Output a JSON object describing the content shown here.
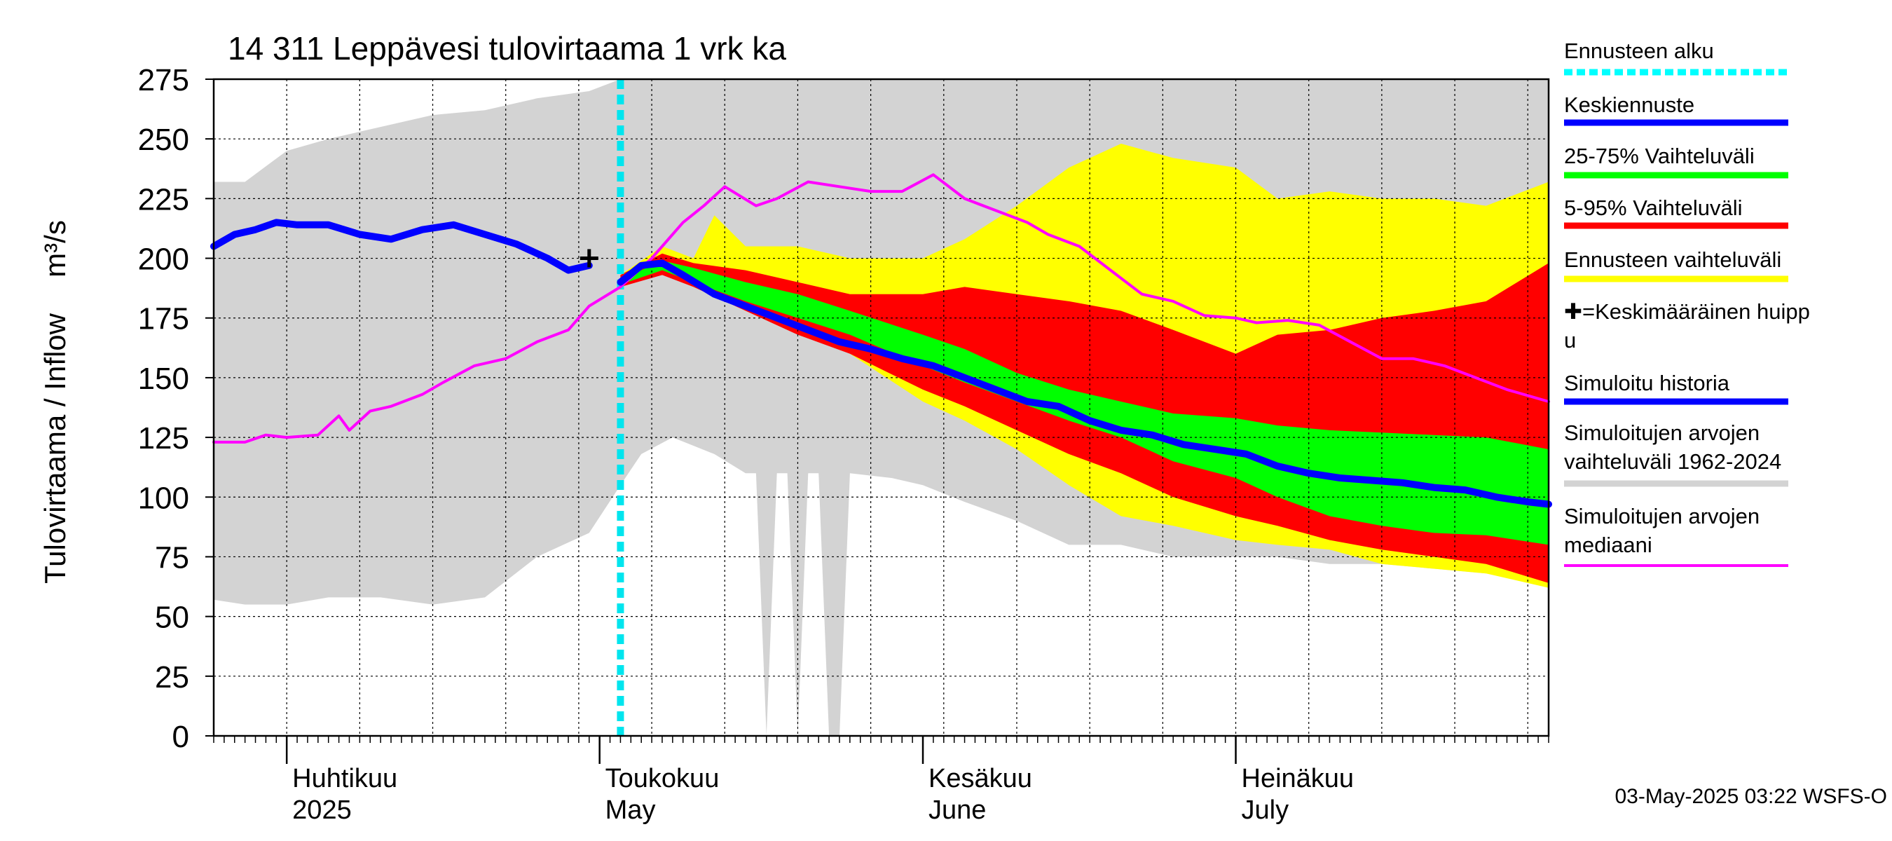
{
  "chart_data": {
    "type": "area",
    "title": "14 311 Leppävesi tulovirtaama 1 vrk ka",
    "ylabel_left": "Tulovirtaama / Inflow",
    "ylabel_right": "m³/s",
    "ylim": [
      0,
      275
    ],
    "yticks": [
      0,
      25,
      50,
      75,
      100,
      125,
      150,
      175,
      200,
      225,
      250,
      275
    ],
    "xlim": [
      "2025-03-25",
      "2025-07-31"
    ],
    "grid": true,
    "legend_position": "right",
    "forecast_start": "2025-05-03",
    "month_labels": [
      {
        "date": "2025-04-01",
        "fi": "Huhtikuu",
        "en": "2025"
      },
      {
        "date": "2025-05-01",
        "fi": "Toukokuu",
        "en": "May"
      },
      {
        "date": "2025-06-01",
        "fi": "Kesäkuu",
        "en": "June"
      },
      {
        "date": "2025-07-01",
        "fi": "Heinäkuu",
        "en": "July"
      }
    ],
    "mean_peak": {
      "date": "2025-04-30",
      "value": 200
    },
    "series": [
      {
        "name": "Simuloitujen arvojen vaihteluväli 1962-2024",
        "kind": "band",
        "color": "#d3d3d3",
        "x": [
          "2025-03-25",
          "2025-03-28",
          "2025-04-01",
          "2025-04-05",
          "2025-04-10",
          "2025-04-15",
          "2025-04-20",
          "2025-04-25",
          "2025-04-30",
          "2025-05-03",
          "2025-05-05",
          "2025-05-08",
          "2025-05-12",
          "2025-05-15",
          "2025-05-16",
          "2025-05-17",
          "2025-05-18",
          "2025-05-19",
          "2025-05-20",
          "2025-05-21",
          "2025-05-22",
          "2025-05-23",
          "2025-05-24",
          "2025-05-25",
          "2025-05-29",
          "2025-06-01",
          "2025-06-05",
          "2025-06-10",
          "2025-06-15",
          "2025-06-20",
          "2025-06-25",
          "2025-07-01",
          "2025-07-05",
          "2025-07-10",
          "2025-07-15",
          "2025-07-20",
          "2025-07-25",
          "2025-07-31"
        ],
        "high": [
          232,
          232,
          245,
          250,
          255,
          260,
          262,
          267,
          270,
          275,
          275,
          275,
          275,
          275,
          275,
          275,
          275,
          275,
          275,
          275,
          275,
          275,
          275,
          275,
          275,
          275,
          275,
          275,
          275,
          275,
          275,
          275,
          275,
          275,
          275,
          275,
          275,
          275
        ],
        "low": [
          57,
          55,
          55,
          58,
          58,
          55,
          58,
          75,
          85,
          105,
          118,
          125,
          118,
          110,
          110,
          0,
          110,
          110,
          0,
          110,
          110,
          0,
          0,
          110,
          108,
          105,
          98,
          90,
          80,
          80,
          75,
          75,
          75,
          72,
          72,
          70,
          68,
          66
        ]
      },
      {
        "name": "Ennusteen vaihteluväli",
        "kind": "band",
        "color": "#ffff00",
        "x": [
          "2025-05-03",
          "2025-05-07",
          "2025-05-10",
          "2025-05-12",
          "2025-05-15",
          "2025-05-20",
          "2025-05-25",
          "2025-06-01",
          "2025-06-05",
          "2025-06-10",
          "2025-06-15",
          "2025-06-20",
          "2025-06-25",
          "2025-07-01",
          "2025-07-05",
          "2025-07-10",
          "2025-07-15",
          "2025-07-20",
          "2025-07-25",
          "2025-07-31"
        ],
        "high": [
          193,
          205,
          200,
          218,
          205,
          205,
          200,
          200,
          208,
          222,
          238,
          248,
          242,
          238,
          225,
          228,
          225,
          225,
          222,
          232
        ],
        "low": [
          188,
          195,
          190,
          185,
          178,
          170,
          160,
          140,
          132,
          120,
          105,
          92,
          88,
          82,
          80,
          78,
          72,
          70,
          68,
          62
        ]
      },
      {
        "name": "5-95% Vaihteluväli",
        "kind": "band",
        "color": "#ff0000",
        "x": [
          "2025-05-03",
          "2025-05-07",
          "2025-05-10",
          "2025-05-15",
          "2025-05-20",
          "2025-05-25",
          "2025-06-01",
          "2025-06-05",
          "2025-06-10",
          "2025-06-15",
          "2025-06-20",
          "2025-06-25",
          "2025-07-01",
          "2025-07-05",
          "2025-07-10",
          "2025-07-15",
          "2025-07-20",
          "2025-07-25",
          "2025-07-31"
        ],
        "high": [
          193,
          202,
          198,
          195,
          190,
          185,
          185,
          188,
          185,
          182,
          178,
          170,
          160,
          168,
          170,
          175,
          178,
          182,
          198
        ],
        "low": [
          188,
          193,
          188,
          178,
          168,
          160,
          145,
          138,
          128,
          118,
          110,
          100,
          92,
          88,
          82,
          78,
          75,
          72,
          64
        ]
      },
      {
        "name": "25-75% Vaihteluväli",
        "kind": "band",
        "color": "#00ff00",
        "x": [
          "2025-05-03",
          "2025-05-07",
          "2025-05-10",
          "2025-05-15",
          "2025-05-20",
          "2025-05-25",
          "2025-06-01",
          "2025-06-05",
          "2025-06-10",
          "2025-06-15",
          "2025-06-20",
          "2025-06-25",
          "2025-07-01",
          "2025-07-05",
          "2025-07-10",
          "2025-07-15",
          "2025-07-20",
          "2025-07-25",
          "2025-07-31"
        ],
        "high": [
          191,
          199,
          196,
          190,
          185,
          178,
          168,
          162,
          152,
          145,
          140,
          135,
          133,
          130,
          128,
          127,
          126,
          125,
          120
        ],
        "low": [
          189,
          195,
          190,
          182,
          175,
          168,
          155,
          148,
          140,
          132,
          125,
          115,
          108,
          100,
          92,
          88,
          85,
          84,
          80
        ]
      },
      {
        "name": "Simuloitujen arvojen mediaani",
        "kind": "line",
        "color": "#ff00ff",
        "x": [
          "2025-03-25",
          "2025-03-28",
          "2025-03-30",
          "2025-04-01",
          "2025-04-04",
          "2025-04-06",
          "2025-04-07",
          "2025-04-09",
          "2025-04-11",
          "2025-04-14",
          "2025-04-16",
          "2025-04-19",
          "2025-04-22",
          "2025-04-25",
          "2025-04-28",
          "2025-04-30",
          "2025-05-03",
          "2025-05-06",
          "2025-05-09",
          "2025-05-11",
          "2025-05-13",
          "2025-05-16",
          "2025-05-18",
          "2025-05-21",
          "2025-05-24",
          "2025-05-27",
          "2025-05-30",
          "2025-06-02",
          "2025-06-05",
          "2025-06-08",
          "2025-06-11",
          "2025-06-13",
          "2025-06-16",
          "2025-06-19",
          "2025-06-22",
          "2025-06-25",
          "2025-06-28",
          "2025-07-01",
          "2025-07-03",
          "2025-07-06",
          "2025-07-09",
          "2025-07-12",
          "2025-07-15",
          "2025-07-18",
          "2025-07-21",
          "2025-07-24",
          "2025-07-27",
          "2025-07-31"
        ],
        "values": [
          123,
          123,
          126,
          125,
          126,
          134,
          128,
          136,
          138,
          143,
          148,
          155,
          158,
          165,
          170,
          180,
          188,
          200,
          215,
          222,
          230,
          222,
          225,
          232,
          230,
          228,
          228,
          235,
          225,
          220,
          215,
          210,
          205,
          195,
          185,
          182,
          176,
          175,
          173,
          174,
          172,
          165,
          158,
          158,
          155,
          150,
          145,
          140
        ]
      },
      {
        "name": "Simuloitu historia",
        "kind": "line",
        "color": "#0000ff",
        "x": [
          "2025-03-25",
          "2025-03-27",
          "2025-03-29",
          "2025-03-31",
          "2025-04-02",
          "2025-04-05",
          "2025-04-08",
          "2025-04-11",
          "2025-04-14",
          "2025-04-17",
          "2025-04-20",
          "2025-04-23",
          "2025-04-26",
          "2025-04-28",
          "2025-04-30"
        ],
        "values": [
          205,
          210,
          212,
          215,
          214,
          214,
          210,
          208,
          212,
          214,
          210,
          206,
          200,
          195,
          197
        ]
      },
      {
        "name": "Keskiennuste",
        "kind": "line",
        "color": "#0000ff",
        "x": [
          "2025-05-03",
          "2025-05-05",
          "2025-05-07",
          "2025-05-09",
          "2025-05-12",
          "2025-05-15",
          "2025-05-18",
          "2025-05-21",
          "2025-05-24",
          "2025-05-27",
          "2025-05-30",
          "2025-06-02",
          "2025-06-05",
          "2025-06-08",
          "2025-06-11",
          "2025-06-14",
          "2025-06-17",
          "2025-06-20",
          "2025-06-23",
          "2025-06-26",
          "2025-06-29",
          "2025-07-02",
          "2025-07-05",
          "2025-07-08",
          "2025-07-11",
          "2025-07-14",
          "2025-07-17",
          "2025-07-20",
          "2025-07-23",
          "2025-07-26",
          "2025-07-29",
          "2025-07-31"
        ],
        "values": [
          190,
          197,
          198,
          193,
          185,
          180,
          175,
          170,
          165,
          162,
          158,
          155,
          150,
          145,
          140,
          138,
          132,
          128,
          126,
          122,
          120,
          118,
          113,
          110,
          108,
          107,
          106,
          104,
          103,
          100,
          98,
          97
        ]
      }
    ],
    "legend": [
      {
        "label": "Ennusteen alku",
        "color": "#00ffff",
        "style": "dotted"
      },
      {
        "label": "Keskiennuste",
        "color": "#0000ff",
        "style": "solid"
      },
      {
        "label": "25-75% Vaihteluväli",
        "color": "#00ff00",
        "style": "solid"
      },
      {
        "label": "5-95% Vaihteluväli",
        "color": "#ff0000",
        "style": "solid"
      },
      {
        "label": "Ennusteen vaihteluväli",
        "color": "#ffff00",
        "style": "solid"
      },
      {
        "label": "✚=Keskimääräinen huippu",
        "lines": [
          "✚=Keskimääräinen huipp",
          "u"
        ],
        "color": "",
        "style": "none"
      },
      {
        "label": "Simuloitu historia",
        "color": "#0000ff",
        "style": "solid"
      },
      {
        "label": "Simuloitujen arvojen vaihteluväli 1962-2024",
        "lines": [
          "Simuloitujen arvojen",
          "vaihteluväli 1962-2024"
        ],
        "color": "#d3d3d3",
        "style": "solid"
      },
      {
        "label": "Simuloitujen arvojen mediaani",
        "lines": [
          "Simuloitujen arvojen",
          "mediaani"
        ],
        "color": "#ff00ff",
        "style": "solid"
      }
    ],
    "footer": "03-May-2025 03:22 WSFS-O"
  }
}
